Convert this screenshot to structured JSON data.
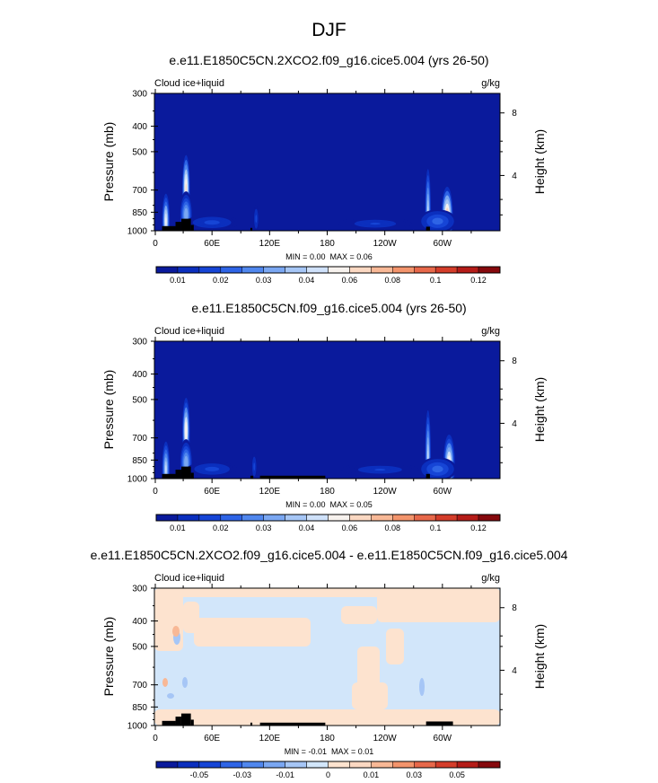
{
  "figure": {
    "title": "DJF",
    "colors": {
      "seq": [
        "#0a1a9c",
        "#0b2fbe",
        "#1645d6",
        "#2e64e6",
        "#5087ee",
        "#7aa7f2",
        "#a6c6f6",
        "#cfe1fa",
        "#f7f2ee",
        "#fbd8c2",
        "#f8b896",
        "#f3946c",
        "#e7684a",
        "#d43d2a",
        "#b51c18",
        "#86090d"
      ],
      "diff": [
        "#0a1a9c",
        "#0b2fbe",
        "#1645d6",
        "#2e64e6",
        "#5087ee",
        "#7aa7f2",
        "#a6c6f6",
        "#d2e6fa",
        "#fde3cf",
        "#fbd8c2",
        "#f8b896",
        "#f3946c",
        "#e7684a",
        "#d43d2a",
        "#b51c18",
        "#86090d"
      ],
      "background": "#0a1a9c",
      "land": "#000000"
    }
  },
  "chart_data": [
    {
      "type": "heatmap",
      "id": "p1",
      "title": "e.e11.E1850C5CN.2XCO2.f09_g16.cice5.004 (yrs 26-50)",
      "left_label": "Cloud ice+liquid",
      "right_label": "g/kg",
      "ylabel": "Pressure (mb)",
      "ylabel_right": "Height (km)",
      "yticks": [
        "300",
        "400",
        "500",
        "700",
        "850",
        "1000"
      ],
      "ytick_values": [
        300,
        400,
        500,
        700,
        850,
        1000
      ],
      "yticks_right": [
        "8",
        "4"
      ],
      "xticks": [
        "0",
        "60E",
        "120E",
        "180",
        "120W",
        "60W"
      ],
      "xtick_values": [
        0,
        60,
        120,
        180,
        240,
        300
      ],
      "xlim": [
        0,
        360
      ],
      "ylim": [
        1000,
        300
      ],
      "min_label": "MIN =",
      "min_value": "0.00",
      "max_label": "MAX =",
      "max_value": "0.06",
      "colorbar_labels": [
        "0.01",
        "0.02",
        "0.03",
        "0.04",
        "0.06",
        "0.08",
        "0.1",
        "0.12"
      ],
      "blobs": [
        {
          "lon": 12,
          "p": 920,
          "lw": 4,
          "ph": 140,
          "v": 0.045
        },
        {
          "lon": 33,
          "p": 690,
          "lw": 4,
          "ph": 170,
          "v": 0.055
        },
        {
          "lon": 33,
          "p": 870,
          "lw": 7,
          "ph": 120,
          "v": 0.03
        },
        {
          "lon": 60,
          "p": 930,
          "lw": 28,
          "ph": 40,
          "v": 0.012
        },
        {
          "lon": 106,
          "p": 900,
          "lw": 3,
          "ph": 70,
          "v": 0.012
        },
        {
          "lon": 230,
          "p": 940,
          "lw": 38,
          "ph": 35,
          "v": 0.011
        },
        {
          "lon": 285,
          "p": 850,
          "lw": 3,
          "ph": 220,
          "v": 0.04
        },
        {
          "lon": 305,
          "p": 880,
          "lw": 6,
          "ph": 150,
          "v": 0.06
        },
        {
          "lon": 295,
          "p": 920,
          "lw": 20,
          "ph": 60,
          "v": 0.02
        }
      ],
      "land": [
        {
          "lon0": 8,
          "lon1": 22,
          "p0": 960
        },
        {
          "lon0": 22,
          "lon1": 28,
          "p0": 925
        },
        {
          "lon0": 28,
          "lon1": 38,
          "p0": 900
        },
        {
          "lon0": 38,
          "lon1": 41,
          "p0": 950
        },
        {
          "lon0": 100,
          "lon1": 102,
          "p0": 975
        },
        {
          "lon0": 283,
          "lon1": 287,
          "p0": 965
        }
      ]
    },
    {
      "type": "heatmap",
      "id": "p2",
      "title": "e.e11.E1850C5CN.f09_g16.cice5.004 (yrs 26-50)",
      "left_label": "Cloud ice+liquid",
      "right_label": "g/kg",
      "ylabel": "Pressure (mb)",
      "ylabel_right": "Height (km)",
      "yticks": [
        "300",
        "400",
        "500",
        "700",
        "850",
        "1000"
      ],
      "ytick_values": [
        300,
        400,
        500,
        700,
        850,
        1000
      ],
      "yticks_right": [
        "8",
        "4"
      ],
      "xticks": [
        "0",
        "60E",
        "120E",
        "180",
        "120W",
        "60W"
      ],
      "xtick_values": [
        0,
        60,
        120,
        180,
        240,
        300
      ],
      "xlim": [
        0,
        360
      ],
      "ylim": [
        1000,
        300
      ],
      "min_label": "MIN =",
      "min_value": "0.00",
      "max_label": "MAX =",
      "max_value": "0.05",
      "colorbar_labels": [
        "0.01",
        "0.02",
        "0.03",
        "0.04",
        "0.06",
        "0.08",
        "0.1",
        "0.12"
      ],
      "blobs": [
        {
          "lon": 12,
          "p": 920,
          "lw": 4,
          "ph": 140,
          "v": 0.04
        },
        {
          "lon": 33,
          "p": 660,
          "lw": 4,
          "ph": 170,
          "v": 0.05
        },
        {
          "lon": 33,
          "p": 870,
          "lw": 7,
          "ph": 120,
          "v": 0.03
        },
        {
          "lon": 60,
          "p": 920,
          "lw": 26,
          "ph": 40,
          "v": 0.012
        },
        {
          "lon": 104,
          "p": 900,
          "lw": 3,
          "ph": 70,
          "v": 0.013
        },
        {
          "lon": 235,
          "p": 925,
          "lw": 40,
          "ph": 35,
          "v": 0.011
        },
        {
          "lon": 285,
          "p": 830,
          "lw": 3,
          "ph": 240,
          "v": 0.04
        },
        {
          "lon": 307,
          "p": 880,
          "lw": 6,
          "ph": 150,
          "v": 0.05
        },
        {
          "lon": 295,
          "p": 920,
          "lw": 20,
          "ph": 60,
          "v": 0.02
        }
      ],
      "land": [
        {
          "lon0": 8,
          "lon1": 22,
          "p0": 960
        },
        {
          "lon0": 22,
          "lon1": 28,
          "p0": 925
        },
        {
          "lon0": 28,
          "lon1": 38,
          "p0": 900
        },
        {
          "lon0": 38,
          "lon1": 41,
          "p0": 950
        },
        {
          "lon0": 100,
          "lon1": 103,
          "p0": 975
        },
        {
          "lon0": 110,
          "lon1": 178,
          "p0": 975
        },
        {
          "lon0": 283,
          "lon1": 287,
          "p0": 960
        }
      ]
    },
    {
      "type": "heatmap",
      "id": "p3",
      "title": "e.e11.E1850C5CN.2XCO2.f09_g16.cice5.004 - e.e11.E1850C5CN.f09_g16.cice5.004",
      "left_label": "Cloud ice+liquid",
      "right_label": "g/kg",
      "ylabel": "Pressure (mb)",
      "ylabel_right": "Height (km)",
      "yticks": [
        "300",
        "400",
        "500",
        "700",
        "850",
        "1000"
      ],
      "ytick_values": [
        300,
        400,
        500,
        700,
        850,
        1000
      ],
      "yticks_right": [
        "8",
        "4"
      ],
      "xticks": [
        "0",
        "60E",
        "120E",
        "180",
        "120W",
        "60W"
      ],
      "xtick_values": [
        0,
        60,
        120,
        180,
        240,
        300
      ],
      "xlim": [
        0,
        360
      ],
      "ylim": [
        1000,
        300
      ],
      "min_label": "MIN =",
      "min_value": "-0.01",
      "max_label": "MAX =",
      "max_value": "0.01",
      "colorbar_labels": [
        "-0.05",
        "-0.03",
        "-0.01",
        "0",
        "0.01",
        "0.03",
        "0.05"
      ],
      "land": [
        {
          "lon0": 8,
          "lon1": 22,
          "p0": 960
        },
        {
          "lon0": 22,
          "lon1": 28,
          "p0": 925
        },
        {
          "lon0": 28,
          "lon1": 38,
          "p0": 900
        },
        {
          "lon0": 38,
          "lon1": 41,
          "p0": 950
        },
        {
          "lon0": 100,
          "lon1": 102,
          "p0": 975
        },
        {
          "lon0": 110,
          "lon1": 178,
          "p0": 975
        },
        {
          "lon0": 283,
          "lon1": 311,
          "p0": 965
        }
      ]
    }
  ]
}
